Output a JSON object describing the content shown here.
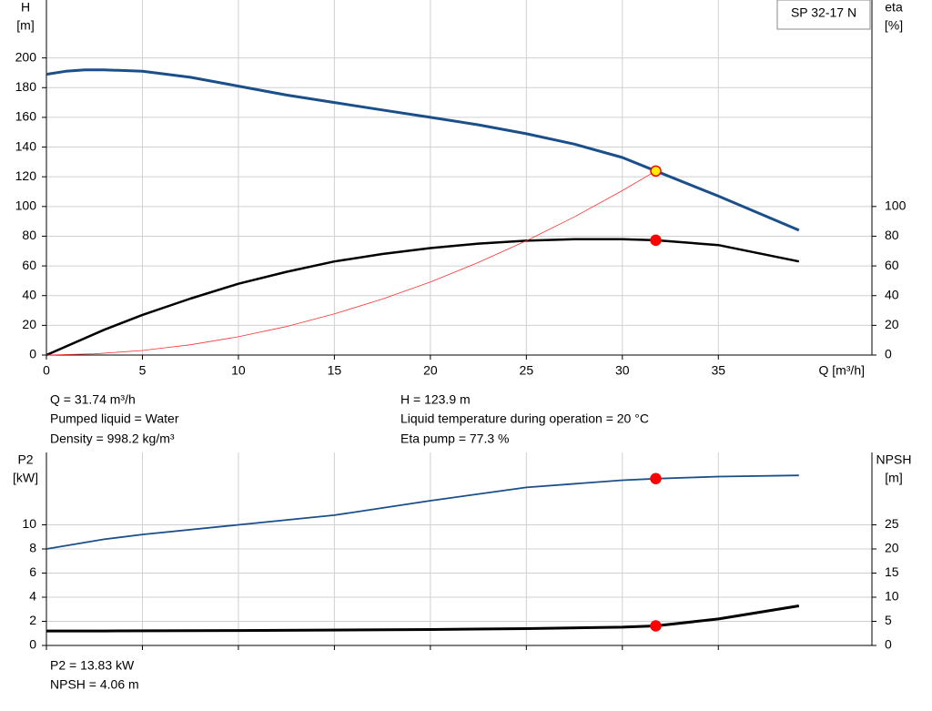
{
  "chart_data": [
    {
      "type": "line",
      "title": "SP 32-17 N",
      "y_label": [
        "H",
        "[m]"
      ],
      "y2_label": [
        "eta",
        "[%]"
      ],
      "x_label": "Q [m³/h]",
      "xlim": [
        0,
        43
      ],
      "xticks": [
        0,
        5,
        10,
        15,
        20,
        25,
        30,
        35
      ],
      "ylim": [
        0,
        239
      ],
      "yticks": [
        0,
        20,
        40,
        60,
        80,
        100,
        120,
        140,
        160,
        180,
        200
      ],
      "y2lim": [
        0,
        239
      ],
      "y2ticks": [
        0,
        20,
        40,
        60,
        80,
        100
      ],
      "grid": true,
      "series": [
        {
          "color": "#1a4f8a",
          "width": 3,
          "axis": "y",
          "x": [
            0,
            1,
            2,
            3,
            5,
            7.5,
            10,
            12.5,
            15,
            17.5,
            20,
            22.5,
            25,
            27.5,
            30,
            31.74,
            35,
            39.2
          ],
          "values": [
            189,
            191,
            192,
            192,
            191,
            187,
            181,
            175,
            170,
            165,
            160,
            155,
            149,
            142,
            133,
            123.9,
            107,
            84
          ]
        },
        {
          "color": "#000000",
          "width": 2.5,
          "axis": "y2",
          "x": [
            0,
            3,
            5,
            7.5,
            10,
            12.5,
            15,
            17.5,
            20,
            22.5,
            25,
            27.5,
            30,
            31.74,
            35,
            39.2
          ],
          "values": [
            0,
            17,
            27,
            38,
            48,
            56,
            63,
            68,
            72,
            75,
            77,
            78,
            78,
            77.3,
            74,
            63
          ]
        },
        {
          "color": "#ff3030",
          "width": 0.8,
          "axis": "y",
          "x": [
            0,
            2.5,
            5,
            7.5,
            10,
            12.5,
            15,
            17.5,
            20,
            22.5,
            25,
            27.5,
            30,
            31.74
          ],
          "values": [
            0,
            0.77,
            3.07,
            6.92,
            12.3,
            19.2,
            27.7,
            37.7,
            49.2,
            62.3,
            76.9,
            93.0,
            110.7,
            123.9
          ]
        }
      ],
      "duty_points": [
        {
          "x": 31.74,
          "y": 123.9,
          "axis": "y",
          "color": "#ffee00"
        },
        {
          "x": 31.74,
          "y": 77.3,
          "axis": "y2",
          "color": "#ff0000"
        }
      ],
      "notes": [
        "Q = 31.74 m³/h",
        "Pumped liquid = Water",
        "Density = 998.2 kg/m³",
        "H = 123.9 m",
        "Liquid temperature during operation = 20 °C",
        "Eta pump = 77.3 %"
      ]
    },
    {
      "type": "line",
      "y_label": [
        "P2",
        "[kW]"
      ],
      "y2_label": [
        "NPSH",
        "[m]"
      ],
      "xlim": [
        0,
        43
      ],
      "xticks": [
        0,
        5,
        10,
        15,
        20,
        25,
        30,
        35
      ],
      "ylim": [
        0,
        16
      ],
      "yticks": [
        0,
        2,
        4,
        6,
        8,
        10
      ],
      "y2lim": [
        0,
        40
      ],
      "y2ticks": [
        0,
        5,
        10,
        15,
        20,
        25
      ],
      "grid": true,
      "series": [
        {
          "color": "#1a4f8a",
          "width": 1.8,
          "axis": "y",
          "x": [
            0,
            3,
            5,
            10,
            15,
            20,
            25,
            30,
            31.74,
            35,
            39.2
          ],
          "values": [
            8,
            8.8,
            9.2,
            10,
            10.8,
            12,
            13.1,
            13.7,
            13.83,
            14,
            14.1
          ]
        },
        {
          "color": "#000000",
          "width": 3,
          "axis": "y2",
          "x": [
            0,
            3,
            10,
            20,
            25,
            30,
            31.74,
            35,
            39.2
          ],
          "values": [
            3,
            3,
            3.1,
            3.3,
            3.5,
            3.8,
            4.06,
            5.5,
            8.2
          ]
        }
      ],
      "duty_points": [
        {
          "x": 31.74,
          "y": 13.83,
          "axis": "y",
          "color": "#ff0000"
        },
        {
          "x": 31.74,
          "y": 4.06,
          "axis": "y2",
          "color": "#ff0000"
        }
      ],
      "notes": [
        "P2 = 13.83 kW",
        "NPSH = 4.06 m"
      ]
    }
  ]
}
